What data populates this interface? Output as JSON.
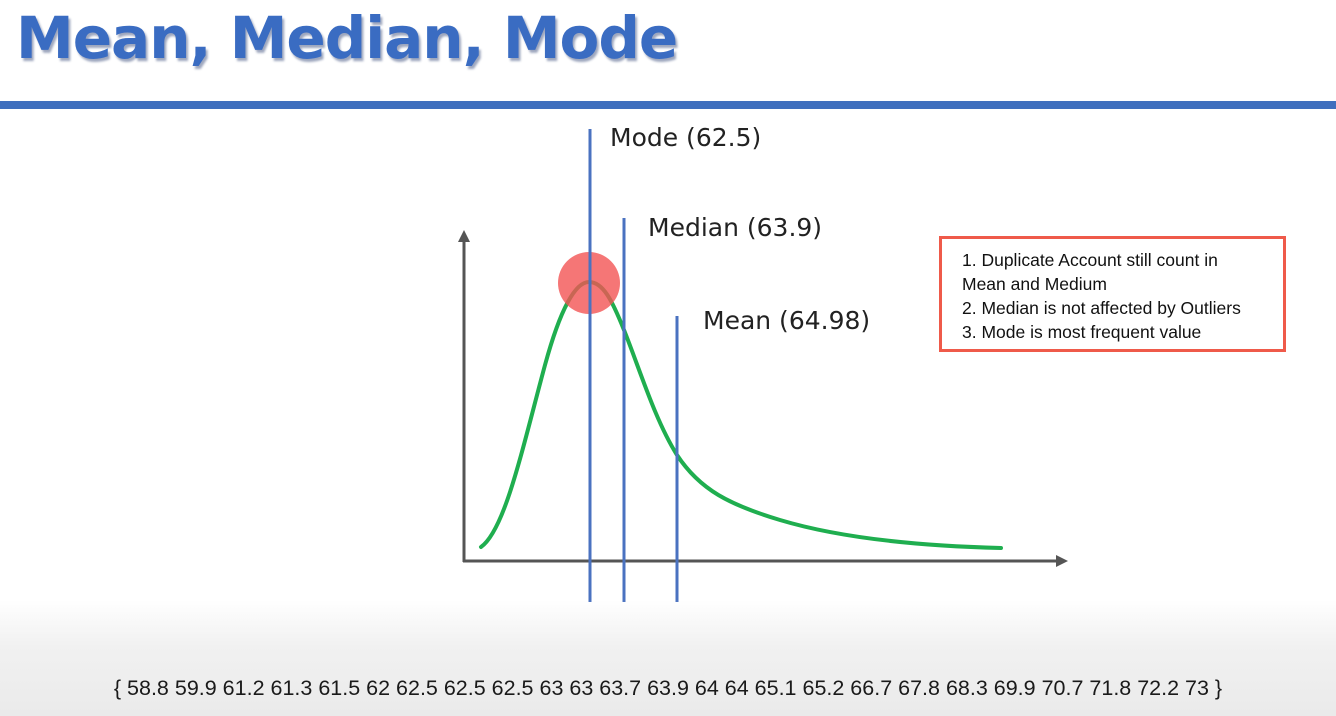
{
  "title": "Mean, Median, Mode",
  "labels": {
    "mode": "Mode (62.5)",
    "median": "Median (63.9)",
    "mean": "Mean (64.98)"
  },
  "notes": [
    "1. Duplicate Account still count in",
    "Mean and Medium",
    "2. Median is not affected by Outliers",
    "3. Mode is most frequent value"
  ],
  "dataset": "{ 58.8 59.9 61.2 61.3 61.5 62 62.5 62.5 62.5 63 63 63.7 63.9 64 64 65.1 65.2 66.7 67.8 68.3 69.9 70.7 71.8 72.2 73 }",
  "colors": {
    "title": "#3a6cc2",
    "rule": "#3f6fbe",
    "marker_line": "#4a72c0",
    "curve": "#1fae4f",
    "mode_highlight": "#f25454",
    "note_border": "#ef5a4a",
    "axis": "#555555"
  },
  "icons": {
    "peak_marker": "circle-highlight",
    "axis_arrows": "arrow-head"
  }
}
